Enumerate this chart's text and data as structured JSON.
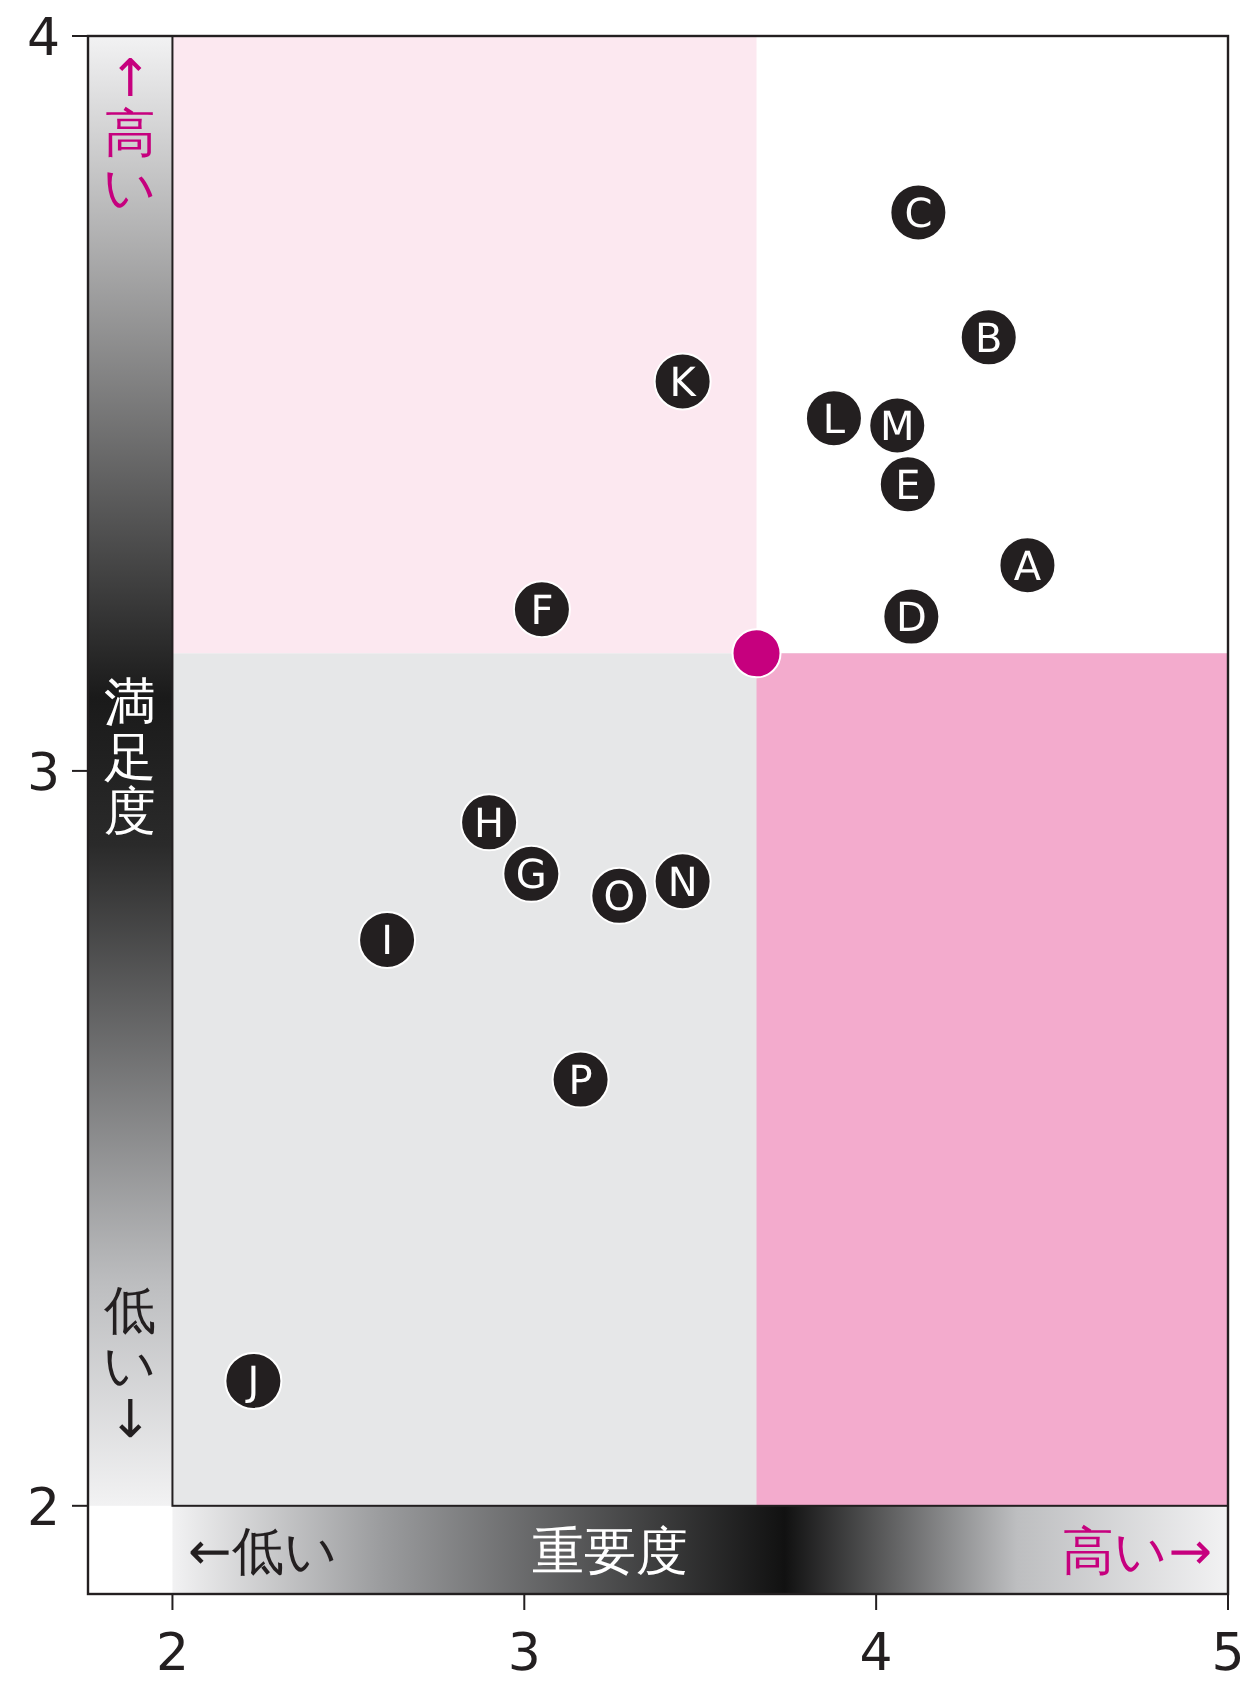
{
  "chart_data": {
    "type": "scatter",
    "xlabel": "重要度",
    "ylabel": "満足度",
    "xlim": [
      1.76,
      5
    ],
    "ylim": [
      1.88,
      4
    ],
    "xticks": [
      2,
      3,
      4,
      5
    ],
    "yticks": [
      2,
      3,
      4
    ],
    "grid": false,
    "marker": "circle",
    "bands": [
      {
        "axis": "y",
        "from": 3.16,
        "to": 4,
        "color": "#fce8f0"
      },
      {
        "axis": "x",
        "from": 3.66,
        "to": 5,
        "color": "#ffffff"
      },
      {
        "axis": "y",
        "from": 2,
        "to": 3.16,
        "color": "#e6e7e8"
      },
      {
        "axis": "x",
        "from": 3.66,
        "to": 5,
        "color": "#f3abcd"
      }
    ],
    "annotations": [
      "↑高い",
      "低い↓",
      "←低い",
      "高い→"
    ],
    "series": [
      {
        "color": "#231f20",
        "x": [
          4.43,
          4.32,
          4.12,
          4.1,
          4.09,
          3.05,
          3.02,
          2.9,
          2.61,
          2.23,
          3.45,
          3.88,
          4.06,
          3.45,
          3.27,
          3.16
        ],
        "values": [
          3.28,
          3.59,
          3.76,
          3.21,
          3.39,
          3.22,
          2.86,
          2.93,
          2.77,
          2.17,
          3.53,
          3.48,
          3.47,
          2.85,
          2.83,
          2.58
        ],
        "value_labels": [
          "A",
          "B",
          "C",
          "D",
          "E",
          "F",
          "G",
          "H",
          "I",
          "J",
          "K",
          "L",
          "M",
          "N",
          "O",
          "P"
        ]
      },
      {
        "color": "#c6007e",
        "x": [
          3.66
        ],
        "values": [
          3.16
        ]
      }
    ]
  }
}
